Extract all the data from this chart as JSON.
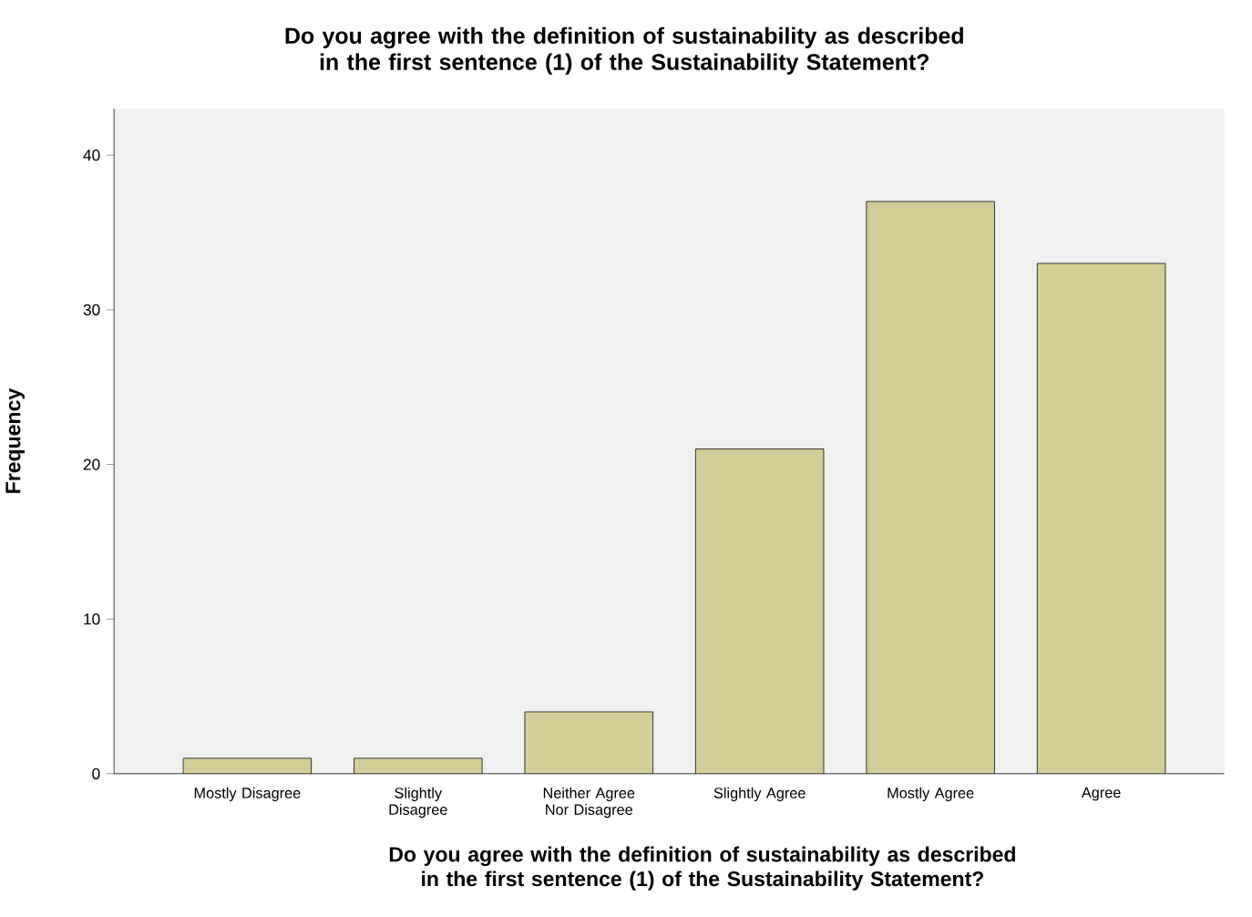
{
  "chart_data": {
    "type": "bar",
    "title": "Do you agree with the definition of sustainability as described in the first sentence (1) of the Sustainability Statement?",
    "xlabel": "Do you agree with the definition of sustainability as described in the first sentence (1) of the Sustainability Statement?",
    "ylabel": "Frequency",
    "categories": [
      "Mostly Disagree",
      "Slightly Disagree",
      "Neither Agree Nor Disagree",
      "Slightly Agree",
      "Mostly Agree",
      "Agree"
    ],
    "values": [
      1,
      1,
      4,
      21,
      37,
      33
    ],
    "color": "#d3ce97",
    "ylim": [
      0,
      43
    ],
    "yticks": [
      0,
      10,
      20,
      30,
      40
    ],
    "grid": false
  }
}
